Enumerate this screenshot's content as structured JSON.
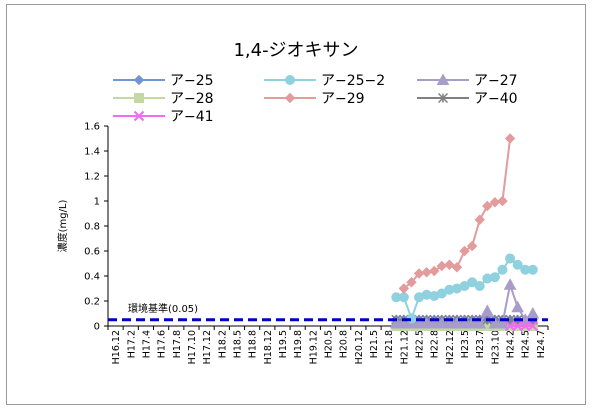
{
  "chart_data": {
    "type": "line",
    "title": "1,4-ジオキサン",
    "ylabel": "濃度(mg/L)",
    "xlabel": "",
    "ylim": [
      0,
      1.6
    ],
    "yticks": [
      "0",
      "0.2",
      "0.4",
      "0.6",
      "0.8",
      "1",
      "1.2",
      "1.4",
      "1.6"
    ],
    "grid": false,
    "legend_position": "top",
    "categories": [
      "H16.12",
      "H17.2",
      "H17.4",
      "H17.6",
      "H17.8",
      "H17.10",
      "H17.12",
      "H18.2",
      "H18.5",
      "H18.8",
      "H18.12",
      "H19.5",
      "H19.8",
      "H19.12",
      "H20.5",
      "H20.8",
      "H20.12",
      "H21.5",
      "H21.8",
      "H21.12",
      "H22.5",
      "H22.8",
      "H22.12",
      "H23.5",
      "H23.7",
      "H23.10",
      "H24.2",
      "H24.5",
      "H24.7"
    ],
    "x": [
      19.0,
      19.5,
      20.0,
      20.5,
      21.0,
      21.5,
      22.0,
      22.5,
      23.0,
      23.5,
      24.0,
      24.5,
      25.0,
      25.5,
      26.0,
      26.5,
      27.0,
      27.5,
      28.0
    ],
    "series": [
      {
        "name": "ア−25",
        "color": "#6f96d2",
        "marker": "diamond",
        "values": [
          0.05,
          0.05,
          0.05,
          0.05,
          0.05,
          0.05,
          0.05,
          0.05,
          0.05,
          0.05,
          0.05,
          0.05,
          0.05,
          0.05,
          0.05,
          0.05,
          0.05,
          0.05,
          0.05
        ]
      },
      {
        "name": "ア−25−2",
        "color": "#8fd1de",
        "marker": "circle",
        "values": [
          0.23,
          0.23,
          0.06,
          0.23,
          0.25,
          0.24,
          0.26,
          0.29,
          0.3,
          0.32,
          0.35,
          0.32,
          0.38,
          0.39,
          0.45,
          0.54,
          0.49,
          0.45,
          0.45
        ]
      },
      {
        "name": "ア−27",
        "color": "#a89cc9",
        "marker": "triangle",
        "values": [
          0.02,
          0.02,
          0.02,
          0.02,
          0.02,
          0.02,
          0.02,
          0.02,
          0.02,
          0.02,
          0.02,
          0.02,
          0.12,
          0.02,
          0.02,
          0.33,
          0.15,
          0.05,
          0.1
        ]
      },
      {
        "name": "ア−28",
        "color": "#c3d9a1",
        "marker": "square",
        "values": [
          0.0,
          0.0,
          0.0,
          0.0,
          0.0,
          0.0,
          0.0,
          0.0,
          0.0,
          0.0,
          0.0,
          0.0,
          0.0,
          0.0,
          0.0,
          0.0,
          0.0,
          0.0,
          0.0
        ]
      },
      {
        "name": "ア−29",
        "color": "#e39b9b",
        "marker": "diamond",
        "values": [
          null,
          0.3,
          0.35,
          0.42,
          0.43,
          0.44,
          0.48,
          0.49,
          0.47,
          0.6,
          0.64,
          0.85,
          0.96,
          0.99,
          1.0,
          1.5,
          null,
          null,
          null
        ]
      },
      {
        "name": "ア−40",
        "color": "#808080",
        "marker": "star",
        "values": [
          0.05,
          0.05,
          0.05,
          0.05,
          0.05,
          0.05,
          0.05,
          0.05,
          0.05,
          0.05,
          0.05,
          0.05,
          0.05,
          0.05,
          0.05,
          0.05,
          0.05,
          0.05,
          0.05
        ]
      },
      {
        "name": "ア−41",
        "color": "#f06cf0",
        "marker": "x",
        "values": [
          null,
          null,
          null,
          null,
          null,
          null,
          null,
          null,
          null,
          null,
          null,
          null,
          null,
          null,
          null,
          0.0,
          0.0,
          0.0,
          0.0
        ]
      }
    ],
    "reference_line": {
      "label": "環境基準(0.05)",
      "value": 0.05,
      "color": "#0000cc",
      "style": "dashed"
    }
  }
}
